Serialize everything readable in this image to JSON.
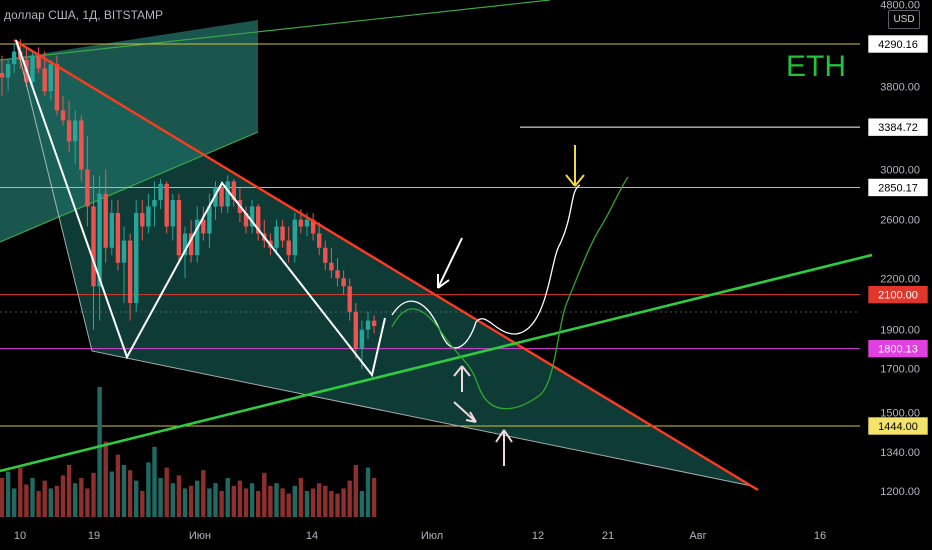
{
  "header": {
    "symbol_title": "доллар США, 1Д, BITSTAMP",
    "asset_label": "ETH",
    "currency": "USD"
  },
  "colors": {
    "background": "#000000",
    "bull": "#26a69a",
    "bear": "#ef5350",
    "resistance_line": "#ff3b1f",
    "support_line": "#2ecc40",
    "channel_line": "#3aa84a",
    "projection_white": "#ffffff",
    "projection_green": "#2ea82e",
    "marker_yellow": "#f5d742",
    "level_yellow": "#d4c040",
    "level_red": "#e0372c",
    "level_magenta": "#e040e0"
  },
  "chart_data": {
    "type": "candlestick",
    "title": "",
    "y_axis": {
      "scale": "log",
      "ticks": [
        "4800.00",
        "4290.16",
        "3800.00",
        "3384.72",
        "3000.00",
        "2850.17",
        "2600.00",
        "2200.00",
        "2100.00",
        "1900.00",
        "1800.13",
        "1700.00",
        "1500.00",
        "1444.00",
        "1340.00",
        "1200.00"
      ],
      "tick_values": [
        4800,
        3800,
        3000,
        2600,
        2200,
        1900,
        1700,
        1500,
        1340,
        1200
      ]
    },
    "x_axis": {
      "ticks": [
        "10",
        "19",
        "Июн",
        "14",
        "Июл",
        "12",
        "21",
        "Авг",
        "16"
      ]
    },
    "horizontal_levels": [
      {
        "value": 4290.16,
        "label": "4290.16",
        "color": "level_yellow"
      },
      {
        "value": 3384.72,
        "label": "3384.72",
        "color": "projection_white"
      },
      {
        "value": 2850.17,
        "label": "2850.17",
        "color": "level_yellow"
      },
      {
        "value": 2100.0,
        "label": "2100.00",
        "color": "level_red"
      },
      {
        "value": 1800.13,
        "label": "1800.13",
        "color": "level_magenta"
      },
      {
        "value": 1444.0,
        "label": "1444.00",
        "color": "level_yellow"
      }
    ],
    "candles_ohlc": [
      [
        3950,
        4150,
        3700,
        3900
      ],
      [
        3900,
        4100,
        3750,
        4050
      ],
      [
        4050,
        4300,
        3950,
        4200
      ],
      [
        4200,
        4350,
        4000,
        4100
      ],
      [
        4100,
        4250,
        3800,
        3850
      ],
      [
        3850,
        4200,
        3800,
        4150
      ],
      [
        4150,
        4250,
        3950,
        4000
      ],
      [
        4000,
        4200,
        3700,
        3750
      ],
      [
        3750,
        4100,
        3650,
        4050
      ],
      [
        4050,
        4150,
        3500,
        3550
      ],
      [
        3550,
        3700,
        3400,
        3450
      ],
      [
        3450,
        3650,
        3150,
        3250
      ],
      [
        3250,
        3550,
        3050,
        3450
      ],
      [
        3450,
        3500,
        2900,
        3000
      ],
      [
        3000,
        3300,
        2550,
        2700
      ],
      [
        2700,
        2950,
        1900,
        2150
      ],
      [
        2150,
        2950,
        1950,
        2800
      ],
      [
        2800,
        3000,
        2300,
        2400
      ],
      [
        2400,
        2750,
        2350,
        2650
      ],
      [
        2650,
        2750,
        2250,
        2300
      ],
      [
        2300,
        2550,
        2050,
        2450
      ],
      [
        2450,
        2500,
        1950,
        2050
      ],
      [
        2050,
        2750,
        2000,
        2650
      ],
      [
        2650,
        2750,
        2450,
        2550
      ],
      [
        2550,
        2800,
        2500,
        2700
      ],
      [
        2700,
        2900,
        2550,
        2750
      ],
      [
        2750,
        2920,
        2680,
        2880
      ],
      [
        2880,
        2900,
        2500,
        2550
      ],
      [
        2550,
        2800,
        2450,
        2750
      ],
      [
        2750,
        2800,
        2300,
        2350
      ],
      [
        2350,
        2550,
        2200,
        2500
      ],
      [
        2500,
        2600,
        2300,
        2350
      ],
      [
        2350,
        2700,
        2300,
        2600
      ],
      [
        2600,
        2700,
        2450,
        2500
      ],
      [
        2500,
        2800,
        2400,
        2700
      ],
      [
        2700,
        2900,
        2600,
        2850
      ],
      [
        2850,
        2900,
        2650,
        2700
      ],
      [
        2700,
        2950,
        2650,
        2900
      ],
      [
        2900,
        2920,
        2700,
        2750
      ],
      [
        2750,
        2850,
        2580,
        2650
      ],
      [
        2650,
        2700,
        2500,
        2550
      ],
      [
        2550,
        2750,
        2500,
        2700
      ],
      [
        2700,
        2720,
        2450,
        2500
      ],
      [
        2500,
        2600,
        2400,
        2450
      ],
      [
        2450,
        2500,
        2350,
        2400
      ],
      [
        2400,
        2600,
        2350,
        2550
      ],
      [
        2550,
        2600,
        2400,
        2450
      ],
      [
        2450,
        2550,
        2300,
        2350
      ],
      [
        2350,
        2650,
        2300,
        2600
      ],
      [
        2600,
        2680,
        2500,
        2550
      ],
      [
        2550,
        2650,
        2480,
        2600
      ],
      [
        2600,
        2650,
        2450,
        2500
      ],
      [
        2500,
        2580,
        2350,
        2400
      ],
      [
        2400,
        2450,
        2250,
        2300
      ],
      [
        2300,
        2400,
        2200,
        2250
      ],
      [
        2250,
        2330,
        2150,
        2200
      ],
      [
        2200,
        2250,
        2100,
        2150
      ],
      [
        2150,
        2200,
        1950,
        2000
      ],
      [
        2000,
        2050,
        1750,
        1800
      ],
      [
        1800,
        1950,
        1700,
        1900
      ],
      [
        1900,
        2000,
        1850,
        1950
      ],
      [
        1950,
        1980,
        1880,
        1920
      ]
    ],
    "volumes": [
      0.3,
      0.35,
      0.22,
      0.38,
      0.25,
      0.3,
      0.2,
      0.28,
      0.22,
      0.24,
      0.32,
      0.4,
      0.26,
      0.3,
      0.22,
      0.34,
      1.0,
      0.58,
      0.35,
      0.48,
      0.4,
      0.36,
      0.28,
      0.2,
      0.42,
      0.54,
      0.3,
      0.38,
      0.26,
      0.32,
      0.22,
      0.24,
      0.28,
      0.36,
      0.22,
      0.26,
      0.2,
      0.3,
      0.24,
      0.28,
      0.22,
      0.26,
      0.2,
      0.34,
      0.24,
      0.26,
      0.22,
      0.18,
      0.24,
      0.3,
      0.2,
      0.22,
      0.26,
      0.24,
      0.2,
      0.18,
      0.22,
      0.28,
      0.4,
      0.2,
      0.38,
      0.3
    ],
    "grid": false,
    "legend": "none"
  }
}
